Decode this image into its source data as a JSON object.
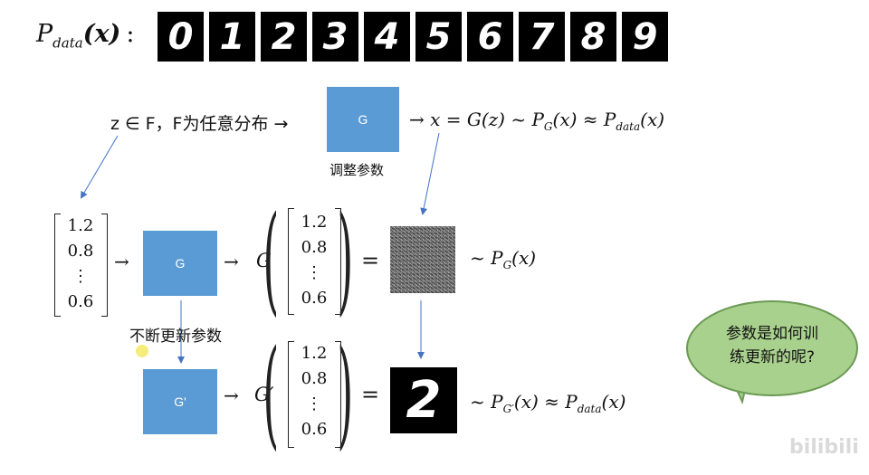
{
  "header": {
    "p_data_label_main": "P",
    "p_data_label_sub": "data",
    "p_data_label_arg": "(x)",
    "colon": ":",
    "digits": [
      "0",
      "1",
      "2",
      "3",
      "4",
      "5",
      "6",
      "7",
      "8",
      "9"
    ]
  },
  "top_formula": {
    "z_in_F": "z ∈ F，F为任意分布 →",
    "g_box_label": "G",
    "right_formula": "→ x = G(z) ~ P",
    "pg_sub": "G",
    "pg_arg": "(x) ≈ P",
    "pdata_sub": "data",
    "pdata_arg": "(x)",
    "adjust_params": "调整参数"
  },
  "middle_row": {
    "vector": [
      "1.2",
      "0.8",
      "⋮",
      "0.6"
    ],
    "arrow": "→",
    "g_box_label": "G",
    "g_func": "G",
    "equals": "=",
    "result_main": "~  P",
    "result_sub": "G",
    "result_arg": "(x)"
  },
  "update_note": "不断更新参数",
  "bottom_row": {
    "g_prime_box_label": "G'",
    "g_prime_func": "G′",
    "equals": "=",
    "result_main": "~  P",
    "result_sub": "G′",
    "result_arg": "(x) ≈ P",
    "pdata_sub": "data",
    "pdata_arg": "(x)",
    "generated_digit": "2"
  },
  "bubble": {
    "line1": "参数是如何训",
    "line2": "练更新的呢?"
  },
  "watermark": "bilibili",
  "colors": {
    "box_blue": "#5b9bd5",
    "bubble_green": "#a9d18e",
    "arrow_blue": "#4472c4"
  }
}
